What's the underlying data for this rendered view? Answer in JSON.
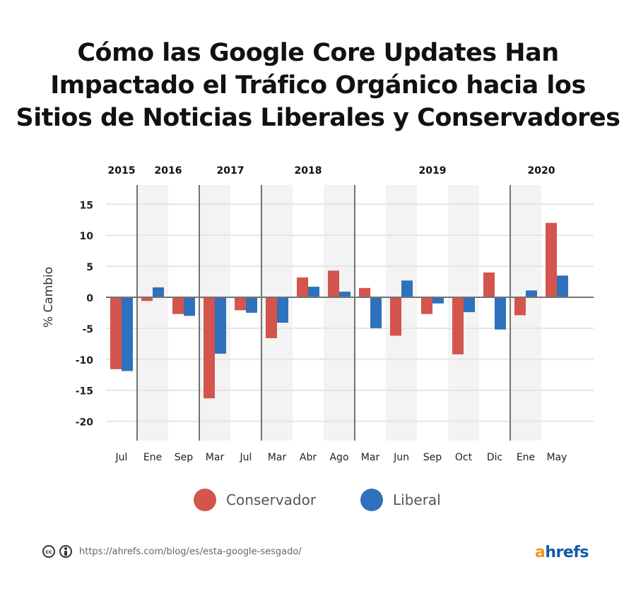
{
  "title_lines": [
    "Cómo las Google Core Updates Han",
    "Impactado el Tráfico Orgánico hacia los",
    "Sitios de Noticias Liberales y Conservadores"
  ],
  "colors": {
    "conservador": "#d4554b",
    "liberal": "#2e71bc",
    "band": "#f3f3f3",
    "grid": "#e5e5e5",
    "separator": "#747474",
    "zero_line": "#747474",
    "logo_a": "#f7931e",
    "logo_rest": "#0e5aa7"
  },
  "chart_data": {
    "type": "bar",
    "title": "Cómo las Google Core Updates Han Impactado el Tráfico Orgánico hacia los Sitios de Noticias Liberales y Conservadores",
    "xlabel": "",
    "ylabel": "% Cambio",
    "ylim": [
      -23,
      18
    ],
    "yticks": [
      15,
      10,
      5,
      0,
      -5,
      -10,
      -15,
      -20
    ],
    "grid": true,
    "legend_position": "bottom",
    "categories": [
      "Jul",
      "Ene",
      "Sep",
      "Mar",
      "Jul",
      "Mar",
      "Abr",
      "Ago",
      "Mar",
      "Jun",
      "Sep",
      "Oct",
      "Dic",
      "Ene",
      "May"
    ],
    "years": [
      {
        "label": "2015",
        "start": 0,
        "end": 0
      },
      {
        "label": "2016",
        "start": 1,
        "end": 2
      },
      {
        "label": "2017",
        "start": 3,
        "end": 4
      },
      {
        "label": "2018",
        "start": 5,
        "end": 7
      },
      {
        "label": "2019",
        "start": 8,
        "end": 12
      },
      {
        "label": "2020",
        "start": 13,
        "end": 14
      }
    ],
    "shaded_categories": [
      1,
      3,
      5,
      7,
      9,
      11,
      13
    ],
    "series": [
      {
        "name": "Conservador",
        "values": [
          -11.6,
          -0.6,
          -2.7,
          -16.3,
          -2.1,
          -6.6,
          3.2,
          4.3,
          1.5,
          -6.2,
          -2.7,
          -9.2,
          4.0,
          -2.9,
          12.0
        ]
      },
      {
        "name": "Liberal",
        "values": [
          -11.9,
          1.6,
          -3.0,
          -9.1,
          -2.5,
          -4.1,
          1.7,
          0.9,
          -5.0,
          2.7,
          -1.0,
          -2.4,
          -5.2,
          1.1,
          3.5
        ]
      }
    ]
  },
  "legend": {
    "items": [
      {
        "label": "Conservador"
      },
      {
        "label": "Liberal"
      }
    ]
  },
  "footer": {
    "cc_icon_text": "cc",
    "url": "https://ahrefs.com/blog/es/esta-google-sesgado/",
    "logo_a": "a",
    "logo_rest": "hrefs"
  }
}
